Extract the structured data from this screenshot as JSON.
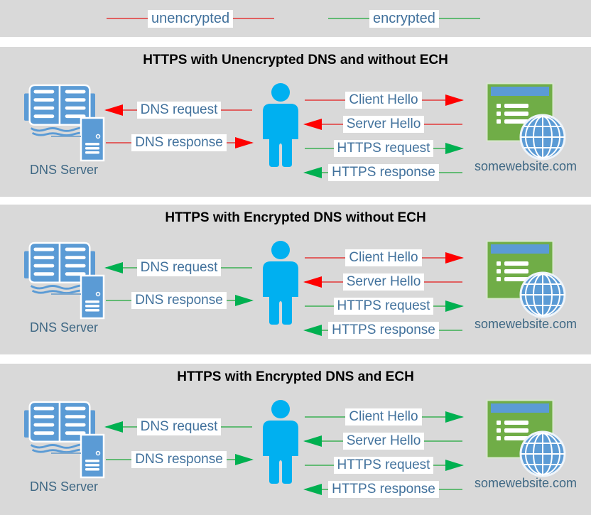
{
  "colors": {
    "panel_bg": "#d9d9d9",
    "page_bg": "#ffffff",
    "title_text": "#000000",
    "label_text": "#41719c",
    "label_bg": "#ffffff",
    "unencrypted_line": "#e06060",
    "unencrypted_arrow": "#ff0000",
    "encrypted_line": "#62ba74",
    "encrypted_arrow": "#00b050",
    "person_blue": "#00b0f0",
    "icon_blue": "#5b9bd5",
    "website_green": "#70ad47"
  },
  "legend": {
    "items": [
      {
        "label": "unencrypted",
        "type": "unencrypted"
      },
      {
        "label": "encrypted",
        "type": "encrypted"
      }
    ]
  },
  "panels": [
    {
      "title": "HTTPS with Unencrypted DNS and without ECH",
      "dns_server_label": "DNS Server",
      "website_label": "somewebsite.com",
      "dns_arrows": [
        {
          "label": "DNS request",
          "direction": "left",
          "encryption": "unencrypted"
        },
        {
          "label": "DNS response",
          "direction": "right",
          "encryption": "unencrypted"
        }
      ],
      "https_arrows": [
        {
          "label": "Client Hello",
          "direction": "right",
          "encryption": "unencrypted"
        },
        {
          "label": "Server Hello",
          "direction": "left",
          "encryption": "unencrypted"
        },
        {
          "label": "HTTPS request",
          "direction": "right",
          "encryption": "encrypted"
        },
        {
          "label": "HTTPS response",
          "direction": "left",
          "encryption": "encrypted"
        }
      ]
    },
    {
      "title": "HTTPS with Encrypted DNS without ECH",
      "dns_server_label": "DNS Server",
      "website_label": "somewebsite.com",
      "dns_arrows": [
        {
          "label": "DNS request",
          "direction": "left",
          "encryption": "encrypted"
        },
        {
          "label": "DNS response",
          "direction": "right",
          "encryption": "encrypted"
        }
      ],
      "https_arrows": [
        {
          "label": "Client Hello",
          "direction": "right",
          "encryption": "unencrypted"
        },
        {
          "label": "Server Hello",
          "direction": "left",
          "encryption": "unencrypted"
        },
        {
          "label": "HTTPS request",
          "direction": "right",
          "encryption": "encrypted"
        },
        {
          "label": "HTTPS response",
          "direction": "left",
          "encryption": "encrypted"
        }
      ]
    },
    {
      "title": "HTTPS with Encrypted DNS and ECH",
      "dns_server_label": "DNS Server",
      "website_label": "somewebsite.com",
      "dns_arrows": [
        {
          "label": "DNS request",
          "direction": "left",
          "encryption": "encrypted"
        },
        {
          "label": "DNS response",
          "direction": "right",
          "encryption": "encrypted"
        }
      ],
      "https_arrows": [
        {
          "label": "Client Hello",
          "direction": "right",
          "encryption": "encrypted"
        },
        {
          "label": "Server Hello",
          "direction": "left",
          "encryption": "encrypted"
        },
        {
          "label": "HTTPS request",
          "direction": "right",
          "encryption": "encrypted"
        },
        {
          "label": "HTTPS response",
          "direction": "left",
          "encryption": "encrypted"
        }
      ]
    }
  ]
}
